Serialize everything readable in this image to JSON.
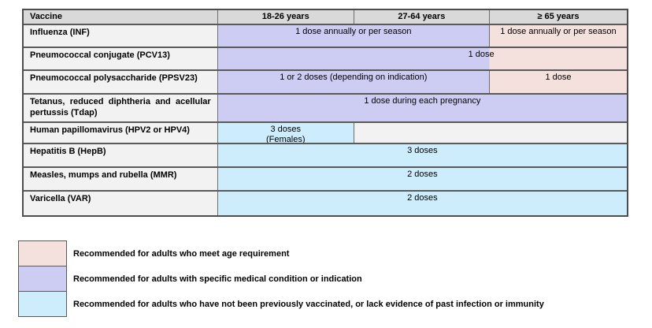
{
  "colors": {
    "age_requirement": "#f4e0dc",
    "medical_condition": "#cdcdf3",
    "not_previously_vaccinated": "#cdecfc",
    "header_bg": "#d9d9d9",
    "vaccine_col_bg": "#f2f2f2",
    "border": "#5a5a5a"
  },
  "table": {
    "headers": [
      "Vaccine",
      "18-26 years",
      "27-64 years",
      "≥ 65 years"
    ],
    "rows": [
      {
        "vaccine": "Influenza (INF)",
        "cells": [
          {
            "text": "1 dose annually or per season",
            "columns": "18-26, 27-64 years",
            "category": "medical-condition"
          },
          {
            "text": "1 dose annually or per season",
            "columns": "≥ 65 years",
            "category": "age-requirement"
          }
        ]
      },
      {
        "vaccine": "Pneumococcal conjugate (PCV13)",
        "cells": [
          {
            "text": "1 dose",
            "columns": "18-26, 27-64 years (medical-condition) and ≥ 65 years (age-requirement)",
            "category": "medical-condition + age-requirement"
          }
        ]
      },
      {
        "vaccine": "Pneumococcal polysaccharide (PPSV23)",
        "cells": [
          {
            "text": "1 or 2 doses (depending on indication)",
            "columns": "18-26, 27-64 years",
            "category": "medical-condition"
          },
          {
            "text": "1 dose",
            "columns": "≥ 65 years",
            "category": "age-requirement"
          }
        ]
      },
      {
        "vaccine": "Tetanus, reduced diphtheria and acellular pertussis (Tdap)",
        "cells": [
          {
            "text": "1 dose during each pregnancy",
            "columns": "all ages",
            "category": "medical-condition"
          }
        ]
      },
      {
        "vaccine": "Human papillomavirus (HPV2 or HPV4)",
        "cells": [
          {
            "lines": [
              "3 doses",
              "(Females)"
            ],
            "columns": "18-26 years",
            "category": "not-previously-vaccinated"
          },
          {
            "text": "",
            "columns": "27-64, ≥ 65 years",
            "category": "empty"
          }
        ]
      },
      {
        "vaccine": "Hepatitis B (HepB)",
        "cells": [
          {
            "text": "3 doses",
            "columns": "all ages",
            "category": "not-previously-vaccinated"
          }
        ]
      },
      {
        "vaccine": "Measles, mumps and rubella (MMR)",
        "cells": [
          {
            "text": "2 doses",
            "columns": "all ages",
            "category": "not-previously-vaccinated"
          }
        ]
      },
      {
        "vaccine": "Varicella (VAR)",
        "cells": [
          {
            "text": "2 doses",
            "columns": "all ages",
            "category": "not-previously-vaccinated"
          }
        ]
      }
    ]
  },
  "legend": {
    "items": [
      {
        "color": "#f4e0dc",
        "label": "Recommended for adults who meet age requirement"
      },
      {
        "color": "#cdcdf3",
        "label": "Recommended for adults with specific medical condition or indication"
      },
      {
        "color": "#cdecfc",
        "label": "Recommended for adults who have not been previously vaccinated, or lack evidence of past infection or immunity"
      }
    ]
  }
}
